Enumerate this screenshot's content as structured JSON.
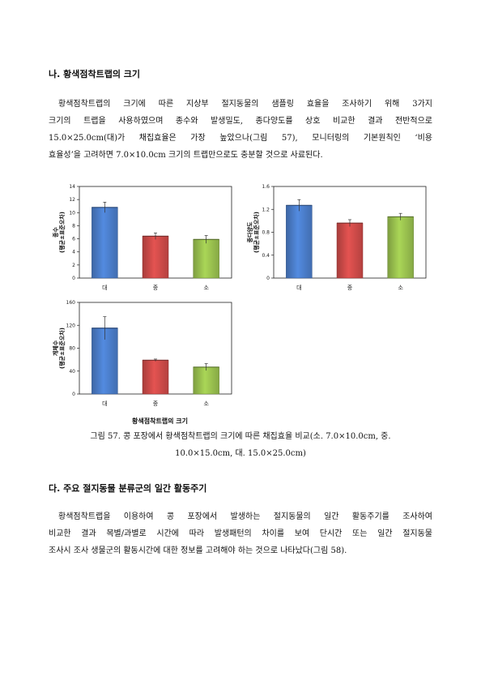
{
  "section_b": {
    "heading": "나. 황색점착트랩의 크기",
    "lines": [
      "황색점착트랩의 크기에 따른 지상부 절지동물의 샘플링 효율을 조사하기 위해 3가지",
      "크기의 트랩을 사용하였으며 종수와 발생밀도, 종다양도를 상호 비교한 결과 전반적으로",
      "15.0×25.0cm(대)가 채집효율은 가장 높았으나(그림 57), 모니터링의 기본원칙인 ‘비용",
      "효율성’을 고려하면 7.0×10.0cm 크기의 트랩만으로도 충분할 것으로 사료된다."
    ]
  },
  "chart_data": [
    {
      "type": "bar",
      "categories": [
        "대",
        "중",
        "소"
      ],
      "values": [
        10.8,
        6.4,
        5.9
      ],
      "errors": [
        0.8,
        0.5,
        0.6
      ],
      "ylabel": [
        "종수",
        "(평균±표준오차)"
      ],
      "ylim": [
        0,
        14
      ],
      "yticks": [
        0,
        2,
        4,
        6,
        8,
        10,
        12,
        14
      ],
      "colors": [
        "#4a7cc8",
        "#cc4a48",
        "#98bf4e"
      ]
    },
    {
      "type": "bar",
      "categories": [
        "대",
        "중",
        "소"
      ],
      "values": [
        1.27,
        0.96,
        1.07
      ],
      "errors": [
        0.1,
        0.06,
        0.06
      ],
      "ylabel": [
        "종다양도",
        "(평균±표준오차)"
      ],
      "ylim": [
        0,
        1.6
      ],
      "yticks": [
        0,
        0.4,
        0.8,
        1.2,
        1.6
      ],
      "colors": [
        "#4a7cc8",
        "#cc4a48",
        "#98bf4e"
      ]
    },
    {
      "type": "bar",
      "categories": [
        "대",
        "중",
        "소"
      ],
      "values": [
        115,
        59,
        47
      ],
      "errors": [
        20,
        2,
        6
      ],
      "ylabel": [
        "개체수",
        "(평균±표준오차)"
      ],
      "ylim": [
        0,
        160
      ],
      "yticks": [
        0,
        40,
        80,
        120,
        160
      ],
      "xlabel": "황색점착트랩의 크기",
      "colors": [
        "#4a7cc8",
        "#cc4a48",
        "#98bf4e"
      ]
    }
  ],
  "figure57": {
    "caption_1": "그림 57. 콩 포장에서 황색점착트랩의 크기에 따른 채집효율 비교(소. 7.0×10.0cm, 중.",
    "caption_2": "10.0×15.0cm, 대. 15.0×25.0cm)"
  },
  "section_c": {
    "heading": "다. 주요 절지동물 분류군의 일간 활동주기",
    "lines": [
      "황색점착트랩을 이용하여 콩 포장에서 발생하는 절지동물의 일간 활동주기를 조사하여",
      "비교한 결과 목별/과별로 시간에 따라 발생패턴의 차이를 보여 단시간 또는 일간 절지동물",
      "조사시 조사 생물군의 활동시간에 대한 정보를 고려해야 하는 것으로 나타났다(그림 58)."
    ]
  }
}
